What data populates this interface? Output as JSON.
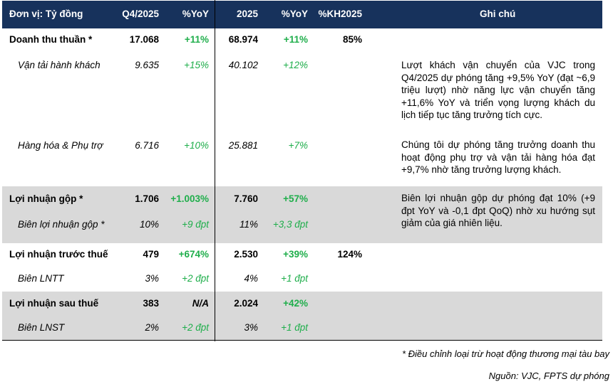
{
  "header": {
    "unit": "Đơn vị: Tỷ đồng",
    "q4": "Q4/2025",
    "yoy_q": "%YoY",
    "year": "2025",
    "yoy_y": "%YoY",
    "plan": "%KH2025",
    "note": "Ghi chú"
  },
  "rows": [
    {
      "label": "Doanh thu thuần *",
      "q4": "17.068",
      "yoy_q": "+11%",
      "year": "68.974",
      "yoy_y": "+11%",
      "plan": "85%"
    },
    {
      "label": "Vận tải hành khách",
      "q4": "9.635",
      "yoy_q": "+15%",
      "year": "40.102",
      "yoy_y": "+12%"
    },
    {
      "label": "Hàng hóa & Phụ trợ",
      "q4": "6.716",
      "yoy_q": "+10%",
      "year": "25.881",
      "yoy_y": "+7%"
    },
    {
      "label": "Lợi nhuận gộp *",
      "q4": "1.706",
      "yoy_q": "+1.003%",
      "year": "7.760",
      "yoy_y": "+57%"
    },
    {
      "label": "Biên lợi nhuận gộp *",
      "q4": "10%",
      "yoy_q": "+9 đpt",
      "year": "11%",
      "yoy_y": "+3,3 đpt"
    },
    {
      "label": "Lợi nhuận trước thuế",
      "q4": "479",
      "yoy_q": "+674%",
      "year": "2.530",
      "yoy_y": "+39%",
      "plan": "124%"
    },
    {
      "label": "Biên LNTT",
      "q4": "3%",
      "yoy_q": "+2 đpt",
      "year": "4%",
      "yoy_y": "+1 đpt"
    },
    {
      "label": "Lợi nhuận sau thuế",
      "q4": "383",
      "yoy_q": "N/A",
      "year": "2.024",
      "yoy_y": "+42%"
    },
    {
      "label": "Biên LNST",
      "q4": "2%",
      "yoy_q": "+2 đpt",
      "year": "3%",
      "yoy_y": "+1 đpt"
    }
  ],
  "notes": [
    "Lượt khách vận chuyển của VJC trong Q4/2025 dự phóng tăng +9,5% YoY (đạt ~6,9 triệu lượt) nhờ năng lực vận chuyển tăng +11,6% YoY và triển vọng lượng khách du lịch tiếp tục tăng trưởng tích cực.",
    "Chúng tôi dự phóng tăng trưởng doanh thu hoạt động phụ trợ và vận tải hàng hóa đạt +9,7% nhờ tăng trưởng lượng khách.",
    "Biên lợi nhuận gộp dự phóng đạt 10% (+9 đpt YoY và -0,1 đpt QoQ) nhờ xu hướng sụt giảm của giá nhiên liệu."
  ],
  "footnote": "* Điều chỉnh loại trừ hoạt động thương mại tàu bay",
  "source": "Nguồn: VJC, FPTS dự phóng",
  "colors": {
    "header_bg": "#17325c",
    "band": "#d9d9d9",
    "positive": "#1fae4b"
  }
}
